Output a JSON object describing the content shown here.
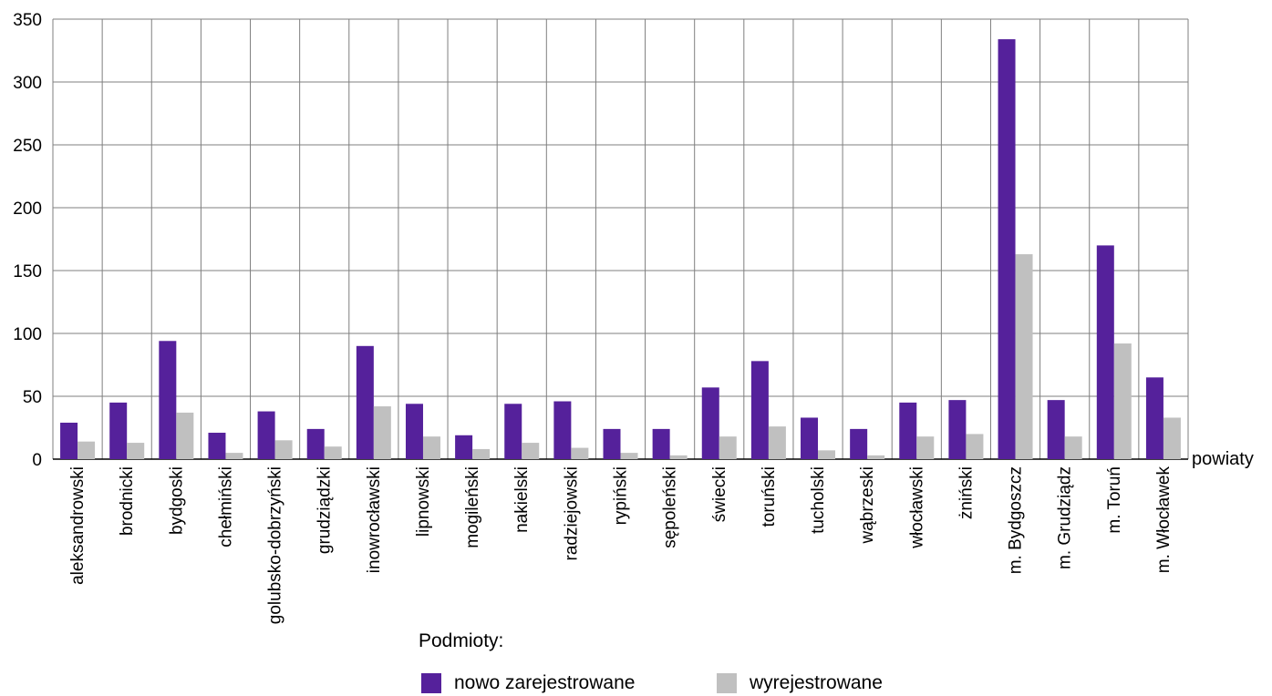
{
  "chart_data": {
    "type": "bar",
    "xlabel": "powiaty",
    "ylabel": "",
    "ylim": [
      0,
      350
    ],
    "yticks": [
      0,
      50,
      100,
      150,
      200,
      250,
      300,
      350
    ],
    "grid": true,
    "legend_position": "bottom",
    "legend_title": "Podmioty:",
    "categories": [
      "aleksandrowski",
      "brodnicki",
      "bydgoski",
      "chełmiński",
      "golubsko-dobrzyński",
      "grudziądzki",
      "inowrocławski",
      "lipnowski",
      "mogileński",
      "nakielski",
      "radziejowski",
      "rypiński",
      "sępoleński",
      "świecki",
      "toruński",
      "tucholski",
      "wąbrzeski",
      "włocławski",
      "żniński",
      "m. Bydgoszcz",
      "m. Grudziądz",
      "m. Toruń",
      "m. Włocławek"
    ],
    "series": [
      {
        "name": "nowo zarejestrowane",
        "color": "#55219b",
        "values": [
          29,
          45,
          94,
          21,
          38,
          24,
          90,
          44,
          19,
          44,
          46,
          24,
          24,
          57,
          78,
          33,
          24,
          45,
          47,
          334,
          47,
          170,
          65
        ]
      },
      {
        "name": "wyrejestrowane",
        "color": "#c0c0c0",
        "values": [
          14,
          13,
          37,
          5,
          15,
          10,
          42,
          18,
          8,
          13,
          9,
          5,
          3,
          18,
          26,
          7,
          3,
          18,
          20,
          163,
          18,
          92,
          33
        ]
      }
    ]
  }
}
